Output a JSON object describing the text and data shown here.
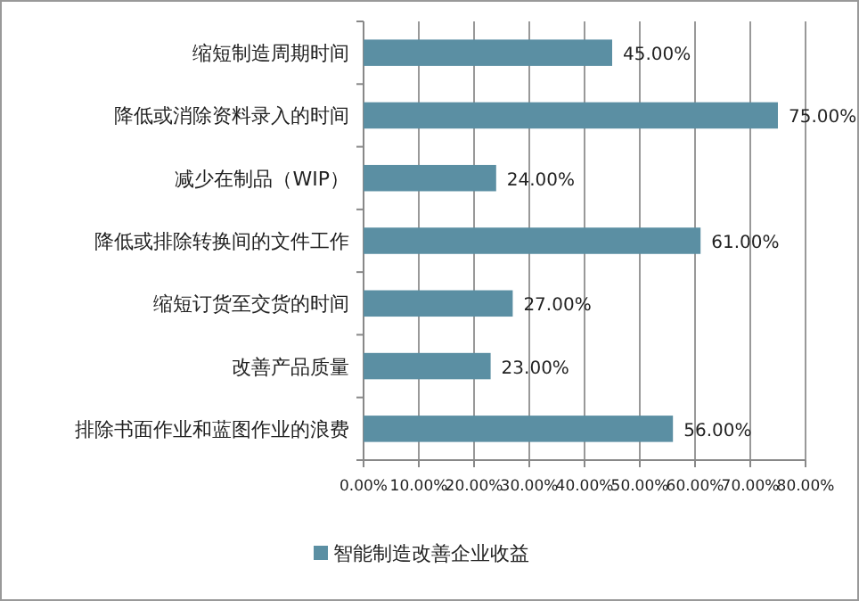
{
  "chart_data": {
    "type": "bar",
    "orientation": "horizontal",
    "categories": [
      "缩短制造周期时间",
      "降低或消除资料录入的时间",
      "减少在制品（WIP）",
      "降低或排除转换间的文件工作",
      "缩短订货至交货的时间",
      "改善产品质量",
      "排除书面作业和蓝图作业的浪费"
    ],
    "series": [
      {
        "name": "智能制造改善企业收益",
        "color": "#5b8fa3",
        "values": [
          45,
          75,
          24,
          61,
          27,
          23,
          56
        ],
        "value_labels": [
          "45.00%",
          "75.00%",
          "24.00%",
          "61.00%",
          "27.00%",
          "23.00%",
          "56.00%"
        ]
      }
    ],
    "xlim": [
      0,
      80
    ],
    "xticks": [
      {
        "value": 0,
        "label": "0.00%"
      },
      {
        "value": 10,
        "label": "10.00%"
      },
      {
        "value": 20,
        "label": "20.00%"
      },
      {
        "value": 30,
        "label": "30.00%"
      },
      {
        "value": 40,
        "label": "40.00%"
      },
      {
        "value": 50,
        "label": "50.00%"
      },
      {
        "value": 60,
        "label": "60.00%"
      },
      {
        "value": 70,
        "label": "70.00%"
      },
      {
        "value": 80,
        "label": "80.00%"
      }
    ],
    "grid": "x",
    "legend": "bottom"
  }
}
